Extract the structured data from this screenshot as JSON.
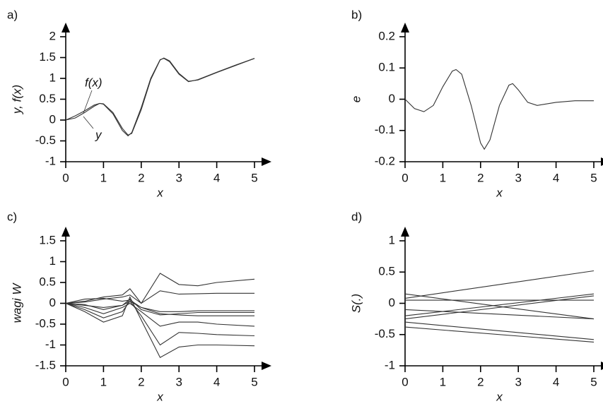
{
  "chart_data": [
    {
      "type": "line",
      "panel": "a)",
      "ylabel": "y, f(x)",
      "xlabel": "x",
      "annotations": [
        "f(x)",
        "y"
      ],
      "x": [
        0,
        0.25,
        0.5,
        0.75,
        0.9,
        1,
        1.25,
        1.5,
        1.65,
        1.75,
        2,
        2.25,
        2.5,
        2.6,
        2.75,
        3,
        3.25,
        3.5,
        4,
        4.5,
        5
      ],
      "series": [
        {
          "color": "#333333",
          "values": [
            0,
            0.1,
            0.22,
            0.36,
            0.4,
            0.38,
            0.15,
            -0.25,
            -0.38,
            -0.3,
            0.3,
            1.0,
            1.45,
            1.48,
            1.4,
            1.1,
            0.92,
            0.97,
            1.15,
            1.32,
            1.48
          ]
        },
        {
          "color": "#333333",
          "values": [
            0,
            0.05,
            0.18,
            0.33,
            0.4,
            0.39,
            0.18,
            -0.2,
            -0.36,
            -0.32,
            0.25,
            0.97,
            1.44,
            1.49,
            1.42,
            1.12,
            0.93,
            0.96,
            1.14,
            1.31,
            1.48
          ]
        }
      ],
      "xlim": [
        0,
        5
      ],
      "xticks": [
        0,
        1,
        2,
        3,
        4,
        5
      ],
      "ylim": [
        -1,
        2
      ],
      "yticks": [
        -1,
        -0.5,
        0,
        0.5,
        1,
        1.5,
        2
      ]
    },
    {
      "type": "line",
      "panel": "b)",
      "ylabel": "e",
      "xlabel": "x",
      "x": [
        0,
        0.25,
        0.5,
        0.75,
        1,
        1.25,
        1.35,
        1.5,
        1.75,
        2,
        2.1,
        2.25,
        2.5,
        2.75,
        2.85,
        3,
        3.25,
        3.5,
        4,
        4.5,
        5
      ],
      "series": [
        {
          "color": "#333333",
          "values": [
            0,
            -0.03,
            -0.04,
            -0.02,
            0.04,
            0.09,
            0.095,
            0.08,
            -0.02,
            -0.14,
            -0.16,
            -0.13,
            -0.02,
            0.045,
            0.05,
            0.03,
            -0.01,
            -0.02,
            -0.01,
            -0.005,
            -0.005
          ]
        }
      ],
      "xlim": [
        0,
        5
      ],
      "xticks": [
        0,
        1,
        2,
        3,
        4,
        5
      ],
      "ylim": [
        -0.2,
        0.2
      ],
      "yticks": [
        -0.2,
        -0.1,
        0,
        0.1,
        0.2
      ]
    },
    {
      "type": "line",
      "panel": "c)",
      "ylabel": "wagi W",
      "xlabel": "x",
      "x": [
        0,
        0.5,
        1,
        1.5,
        1.7,
        2,
        2.5,
        3,
        3.5,
        4,
        5
      ],
      "series": [
        {
          "color": "#333333",
          "values": [
            0,
            0.05,
            0.15,
            0.2,
            0.35,
            0.0,
            0.72,
            0.45,
            0.42,
            0.5,
            0.58
          ]
        },
        {
          "color": "#333333",
          "values": [
            0,
            0.03,
            0.1,
            0.15,
            0.2,
            0.0,
            0.3,
            0.22,
            0.23,
            0.24,
            0.24
          ]
        },
        {
          "color": "#333333",
          "values": [
            0,
            -0.05,
            -0.1,
            -0.05,
            0.05,
            -0.1,
            -0.2,
            -0.2,
            -0.18,
            -0.18,
            -0.18
          ]
        },
        {
          "color": "#333333",
          "values": [
            0,
            -0.03,
            -0.15,
            -0.05,
            0.1,
            -0.15,
            -0.28,
            -0.25,
            -0.22,
            -0.22,
            -0.22
          ]
        },
        {
          "color": "#333333",
          "values": [
            0,
            0.1,
            0.12,
            0.05,
            0.08,
            -0.1,
            -0.25,
            -0.28,
            -0.3,
            -0.3,
            -0.3
          ]
        },
        {
          "color": "#333333",
          "values": [
            0,
            -0.1,
            -0.25,
            -0.1,
            0.0,
            -0.2,
            -0.55,
            -0.45,
            -0.45,
            -0.5,
            -0.55
          ]
        },
        {
          "color": "#333333",
          "values": [
            0,
            -0.15,
            -0.35,
            -0.2,
            0.05,
            -0.3,
            -1.0,
            -0.7,
            -0.72,
            -0.75,
            -0.78
          ]
        },
        {
          "color": "#333333",
          "values": [
            0,
            -0.2,
            -0.45,
            -0.3,
            0.15,
            -0.4,
            -1.3,
            -1.05,
            -1.0,
            -1.0,
            -1.02
          ]
        }
      ],
      "xlim": [
        0,
        5
      ],
      "xticks": [
        0,
        1,
        2,
        3,
        4,
        5
      ],
      "ylim": [
        -1.5,
        1.5
      ],
      "yticks": [
        -1.5,
        -1,
        -0.5,
        0,
        0.5,
        1,
        1.5
      ]
    },
    {
      "type": "line",
      "panel": "d)",
      "ylabel": "S(.)",
      "xlabel": "x",
      "x": [
        0,
        5
      ],
      "series": [
        {
          "color": "#333333",
          "values": [
            0.08,
            0.52
          ]
        },
        {
          "color": "#333333",
          "values": [
            0.15,
            -0.25
          ]
        },
        {
          "color": "#333333",
          "values": [
            0.05,
            0.05
          ]
        },
        {
          "color": "#333333",
          "values": [
            -0.1,
            -0.25
          ]
        },
        {
          "color": "#333333",
          "values": [
            -0.2,
            0.15
          ]
        },
        {
          "color": "#333333",
          "values": [
            -0.25,
            0.12
          ]
        },
        {
          "color": "#333333",
          "values": [
            -0.3,
            -0.58
          ]
        },
        {
          "color": "#333333",
          "values": [
            -0.38,
            -0.62
          ]
        }
      ],
      "xlim": [
        0,
        5
      ],
      "xticks": [
        0,
        1,
        2,
        3,
        4,
        5
      ],
      "ylim": [
        -1,
        1
      ],
      "yticks": [
        -1,
        -0.5,
        0,
        0.5,
        1
      ]
    }
  ]
}
